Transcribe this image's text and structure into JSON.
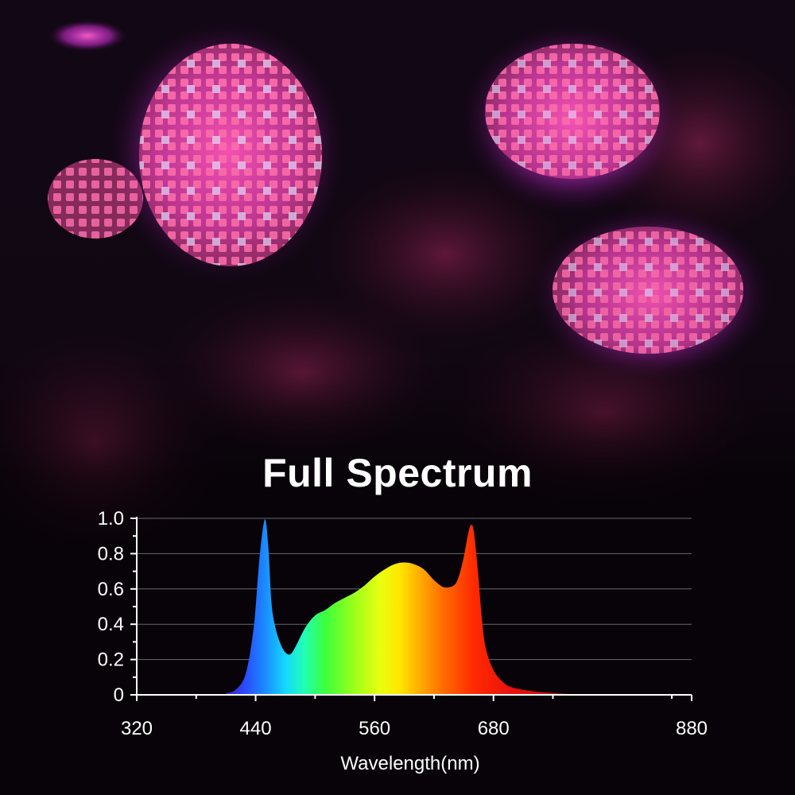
{
  "title": "Full Spectrum",
  "colors": {
    "text": "#ffffff",
    "grid": "#6a6a6a",
    "axis": "#ffffff",
    "background": "#0d0610",
    "photo_glow": "#c02ac8"
  },
  "chart_data": {
    "type": "area",
    "title": "Full Spectrum",
    "xlabel": "Wavelength(nm)",
    "ylabel": "",
    "xlim": [
      320,
      880
    ],
    "ylim": [
      0,
      1.0
    ],
    "x_ticks": [
      320,
      440,
      560,
      680,
      880
    ],
    "x_tick_labels": [
      "320",
      "440",
      "560",
      "680",
      "880"
    ],
    "y_ticks": [
      0,
      0.2,
      0.4,
      0.6,
      0.8,
      1.0
    ],
    "y_tick_labels": [
      "0",
      "0.2",
      "0.4",
      "0.6",
      "0.8",
      "1.0"
    ],
    "grid": "horizontal",
    "fill": "visible-spectrum-gradient",
    "series": [
      {
        "x": [
          410,
          420,
          430,
          438,
          443,
          447,
          450,
          453,
          456,
          460,
          465,
          470,
          475,
          480,
          490,
          500,
          510,
          520,
          530,
          540,
          550,
          560,
          570,
          580,
          590,
          600,
          610,
          620,
          630,
          640,
          645,
          650,
          654,
          657,
          660,
          664,
          668,
          672,
          680,
          690,
          700,
          720,
          740,
          770
        ],
        "y": [
          0.01,
          0.03,
          0.12,
          0.38,
          0.72,
          0.93,
          0.99,
          0.82,
          0.52,
          0.38,
          0.29,
          0.24,
          0.23,
          0.27,
          0.38,
          0.45,
          0.48,
          0.52,
          0.55,
          0.58,
          0.62,
          0.67,
          0.71,
          0.74,
          0.75,
          0.74,
          0.71,
          0.65,
          0.61,
          0.62,
          0.67,
          0.78,
          0.9,
          0.96,
          0.93,
          0.72,
          0.45,
          0.27,
          0.14,
          0.07,
          0.04,
          0.02,
          0.01,
          0.0
        ]
      }
    ]
  }
}
